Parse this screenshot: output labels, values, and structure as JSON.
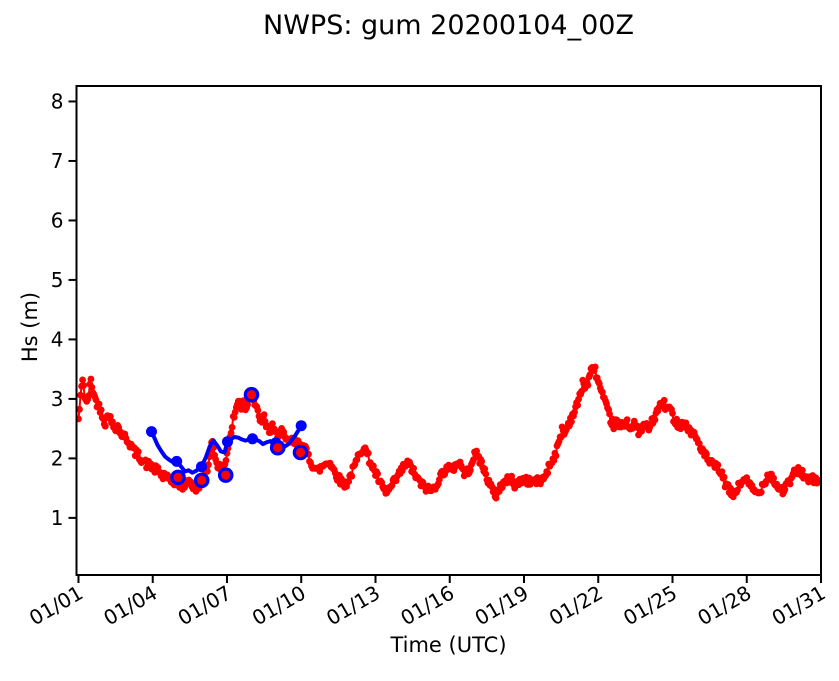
{
  "figure_title": "NWPS: gum 20200104_00Z",
  "colors": {
    "model_red": "#ff0000",
    "forecast_blue": "#0000ff",
    "axis": "#000000",
    "background": "#ffffff"
  },
  "chart_data": {
    "type": "line",
    "title": "NWPS: gum 20200104_00Z",
    "xlabel": "Time (UTC)",
    "ylabel": "Hs (m)",
    "grid": false,
    "legend_position": "none",
    "xlim_days": [
      0.92,
      31.0
    ],
    "ylim": [
      0.04,
      8.26
    ],
    "y_ticks": [
      1,
      2,
      3,
      4,
      5,
      6,
      7,
      8
    ],
    "x_ticks": [
      {
        "day": 1,
        "label": "01/01"
      },
      {
        "day": 4,
        "label": "01/04"
      },
      {
        "day": 7,
        "label": "01/07"
      },
      {
        "day": 10,
        "label": "01/10"
      },
      {
        "day": 13,
        "label": "01/13"
      },
      {
        "day": 16,
        "label": "01/16"
      },
      {
        "day": 19,
        "label": "01/19"
      },
      {
        "day": 22,
        "label": "01/22"
      },
      {
        "day": 25,
        "label": "01/25"
      },
      {
        "day": 28,
        "label": "01/28"
      },
      {
        "day": 31,
        "label": "01/31"
      }
    ],
    "series": [
      {
        "name": "hs-observed-red",
        "style": "line+markers",
        "color": "#ff0000",
        "line_width": 2,
        "marker_radius": 3.4,
        "samples_per_day": 24,
        "noise_amplitude": 0.07,
        "noise_seed": 42,
        "anchors_day_hs": [
          [
            1.0,
            2.65
          ],
          [
            1.08,
            3.0
          ],
          [
            1.17,
            3.38
          ],
          [
            1.25,
            3.05
          ],
          [
            1.33,
            2.9
          ],
          [
            1.42,
            3.1
          ],
          [
            1.5,
            3.3
          ],
          [
            1.58,
            3.15
          ],
          [
            1.67,
            3.0
          ],
          [
            1.79,
            2.9
          ],
          [
            1.92,
            2.8
          ],
          [
            2.0,
            2.7
          ],
          [
            2.08,
            2.58
          ],
          [
            2.21,
            2.78
          ],
          [
            2.33,
            2.6
          ],
          [
            2.46,
            2.52
          ],
          [
            2.58,
            2.55
          ],
          [
            2.71,
            2.42
          ],
          [
            2.83,
            2.38
          ],
          [
            2.96,
            2.32
          ],
          [
            3.08,
            2.25
          ],
          [
            3.25,
            2.12
          ],
          [
            3.42,
            2.05
          ],
          [
            3.58,
            1.98
          ],
          [
            3.75,
            1.9
          ],
          [
            3.92,
            1.88
          ],
          [
            4.08,
            1.82
          ],
          [
            4.25,
            1.78
          ],
          [
            4.42,
            1.68
          ],
          [
            4.5,
            1.76
          ],
          [
            4.63,
            1.63
          ],
          [
            4.79,
            1.6
          ],
          [
            5.0,
            1.62
          ],
          [
            5.17,
            1.52
          ],
          [
            5.33,
            1.57
          ],
          [
            5.46,
            1.65
          ],
          [
            5.58,
            1.55
          ],
          [
            5.75,
            1.47
          ],
          [
            5.88,
            1.55
          ],
          [
            6.0,
            1.63
          ],
          [
            6.13,
            1.72
          ],
          [
            6.25,
            1.88
          ],
          [
            6.38,
            2.35
          ],
          [
            6.46,
            2.15
          ],
          [
            6.58,
            1.95
          ],
          [
            6.71,
            1.83
          ],
          [
            6.83,
            1.76
          ],
          [
            6.92,
            1.9
          ],
          [
            7.0,
            2.1
          ],
          [
            7.13,
            2.35
          ],
          [
            7.25,
            2.65
          ],
          [
            7.38,
            2.85
          ],
          [
            7.5,
            3.0
          ],
          [
            7.58,
            2.85
          ],
          [
            7.67,
            2.95
          ],
          [
            7.79,
            2.82
          ],
          [
            7.88,
            3.05
          ],
          [
            8.0,
            3.1
          ],
          [
            8.08,
            2.98
          ],
          [
            8.17,
            2.85
          ],
          [
            8.29,
            2.72
          ],
          [
            8.42,
            2.6
          ],
          [
            8.5,
            2.68
          ],
          [
            8.63,
            2.52
          ],
          [
            8.75,
            2.45
          ],
          [
            8.83,
            2.52
          ],
          [
            8.96,
            2.4
          ],
          [
            9.08,
            2.42
          ],
          [
            9.21,
            2.48
          ],
          [
            9.33,
            2.32
          ],
          [
            9.46,
            2.27
          ],
          [
            9.58,
            2.3
          ],
          [
            9.71,
            2.27
          ],
          [
            9.83,
            2.24
          ],
          [
            9.96,
            2.26
          ],
          [
            10.08,
            2.2
          ],
          [
            10.25,
            2.08
          ],
          [
            10.42,
            1.92
          ],
          [
            10.54,
            1.84
          ],
          [
            10.67,
            1.79
          ],
          [
            10.83,
            1.86
          ],
          [
            11.0,
            1.92
          ],
          [
            11.13,
            1.95
          ],
          [
            11.29,
            1.82
          ],
          [
            11.46,
            1.7
          ],
          [
            11.63,
            1.6
          ],
          [
            11.79,
            1.56
          ],
          [
            11.96,
            1.68
          ],
          [
            12.17,
            1.88
          ],
          [
            12.38,
            2.12
          ],
          [
            12.54,
            2.2
          ],
          [
            12.71,
            2.02
          ],
          [
            12.88,
            1.86
          ],
          [
            13.08,
            1.68
          ],
          [
            13.29,
            1.5
          ],
          [
            13.46,
            1.42
          ],
          [
            13.63,
            1.52
          ],
          [
            13.83,
            1.65
          ],
          [
            14.0,
            1.76
          ],
          [
            14.17,
            1.88
          ],
          [
            14.33,
            1.92
          ],
          [
            14.5,
            1.8
          ],
          [
            14.71,
            1.64
          ],
          [
            14.92,
            1.54
          ],
          [
            15.13,
            1.48
          ],
          [
            15.29,
            1.46
          ],
          [
            15.5,
            1.6
          ],
          [
            15.71,
            1.76
          ],
          [
            15.92,
            1.85
          ],
          [
            16.08,
            1.8
          ],
          [
            16.25,
            1.9
          ],
          [
            16.38,
            1.94
          ],
          [
            16.5,
            1.84
          ],
          [
            16.63,
            1.72
          ],
          [
            16.79,
            1.82
          ],
          [
            16.96,
            2.02
          ],
          [
            17.08,
            2.08
          ],
          [
            17.25,
            1.95
          ],
          [
            17.42,
            1.78
          ],
          [
            17.58,
            1.6
          ],
          [
            17.75,
            1.44
          ],
          [
            17.88,
            1.38
          ],
          [
            18.04,
            1.52
          ],
          [
            18.25,
            1.62
          ],
          [
            18.46,
            1.66
          ],
          [
            18.63,
            1.56
          ],
          [
            18.83,
            1.6
          ],
          [
            19.0,
            1.66
          ],
          [
            19.21,
            1.6
          ],
          [
            19.42,
            1.63
          ],
          [
            19.63,
            1.6
          ],
          [
            19.79,
            1.66
          ],
          [
            19.96,
            1.82
          ],
          [
            20.13,
            1.96
          ],
          [
            20.29,
            2.1
          ],
          [
            20.46,
            2.32
          ],
          [
            20.54,
            2.52
          ],
          [
            20.63,
            2.4
          ],
          [
            20.79,
            2.58
          ],
          [
            20.96,
            2.72
          ],
          [
            21.13,
            2.88
          ],
          [
            21.29,
            3.08
          ],
          [
            21.38,
            3.32
          ],
          [
            21.46,
            3.18
          ],
          [
            21.58,
            3.28
          ],
          [
            21.71,
            3.45
          ],
          [
            21.83,
            3.55
          ],
          [
            21.96,
            3.35
          ],
          [
            22.08,
            3.18
          ],
          [
            22.25,
            2.95
          ],
          [
            22.38,
            2.8
          ],
          [
            22.5,
            2.65
          ],
          [
            22.63,
            2.56
          ],
          [
            22.75,
            2.62
          ],
          [
            22.88,
            2.52
          ],
          [
            23.0,
            2.56
          ],
          [
            23.17,
            2.62
          ],
          [
            23.33,
            2.5
          ],
          [
            23.46,
            2.56
          ],
          [
            23.63,
            2.46
          ],
          [
            23.79,
            2.5
          ],
          [
            23.92,
            2.56
          ],
          [
            24.04,
            2.5
          ],
          [
            24.17,
            2.6
          ],
          [
            24.33,
            2.74
          ],
          [
            24.5,
            2.88
          ],
          [
            24.63,
            2.95
          ],
          [
            24.75,
            2.82
          ],
          [
            24.88,
            2.86
          ],
          [
            25.0,
            2.72
          ],
          [
            25.17,
            2.6
          ],
          [
            25.33,
            2.56
          ],
          [
            25.46,
            2.6
          ],
          [
            25.63,
            2.5
          ],
          [
            25.79,
            2.44
          ],
          [
            25.96,
            2.34
          ],
          [
            26.08,
            2.24
          ],
          [
            26.25,
            2.1
          ],
          [
            26.42,
            1.98
          ],
          [
            26.58,
            1.9
          ],
          [
            26.75,
            1.86
          ],
          [
            26.92,
            1.8
          ],
          [
            27.08,
            1.62
          ],
          [
            27.29,
            1.46
          ],
          [
            27.46,
            1.38
          ],
          [
            27.63,
            1.5
          ],
          [
            27.79,
            1.6
          ],
          [
            27.92,
            1.68
          ],
          [
            28.08,
            1.56
          ],
          [
            28.29,
            1.46
          ],
          [
            28.46,
            1.4
          ],
          [
            28.63,
            1.54
          ],
          [
            28.83,
            1.7
          ],
          [
            28.96,
            1.74
          ],
          [
            29.13,
            1.6
          ],
          [
            29.29,
            1.5
          ],
          [
            29.46,
            1.46
          ],
          [
            29.63,
            1.54
          ],
          [
            29.79,
            1.64
          ],
          [
            29.96,
            1.78
          ],
          [
            30.17,
            1.8
          ],
          [
            30.33,
            1.7
          ],
          [
            30.5,
            1.6
          ],
          [
            30.67,
            1.66
          ],
          [
            30.83,
            1.6
          ],
          [
            31.0,
            1.62
          ]
        ]
      },
      {
        "name": "hs-forecast-blue",
        "style": "line+markers",
        "color": "#0000ff",
        "line_width": 4,
        "marker_radius": 5.5,
        "line_day_hs": [
          [
            3.92,
            2.46
          ],
          [
            4.05,
            2.36
          ],
          [
            4.2,
            2.22
          ],
          [
            4.35,
            2.12
          ],
          [
            4.5,
            2.03
          ],
          [
            4.65,
            1.98
          ],
          [
            4.8,
            1.94
          ],
          [
            4.97,
            1.95
          ],
          [
            5.15,
            1.86
          ],
          [
            5.3,
            1.78
          ],
          [
            5.45,
            1.8
          ],
          [
            5.6,
            1.76
          ],
          [
            5.75,
            1.79
          ],
          [
            5.97,
            1.86
          ],
          [
            6.15,
            2.02
          ],
          [
            6.3,
            2.2
          ],
          [
            6.45,
            2.3
          ],
          [
            6.6,
            2.22
          ],
          [
            6.75,
            2.12
          ],
          [
            6.9,
            2.1
          ],
          [
            7.02,
            2.28
          ],
          [
            7.15,
            2.32
          ],
          [
            7.3,
            2.36
          ],
          [
            7.45,
            2.35
          ],
          [
            7.6,
            2.32
          ],
          [
            7.75,
            2.3
          ],
          [
            7.9,
            2.32
          ],
          [
            8.03,
            2.33
          ],
          [
            8.15,
            2.32
          ],
          [
            8.3,
            2.29
          ],
          [
            8.45,
            2.24
          ],
          [
            8.6,
            2.27
          ],
          [
            8.75,
            2.29
          ],
          [
            8.97,
            2.26
          ],
          [
            9.15,
            2.21
          ],
          [
            9.3,
            2.19
          ],
          [
            9.45,
            2.23
          ],
          [
            9.6,
            2.3
          ],
          [
            9.75,
            2.38
          ],
          [
            9.9,
            2.48
          ],
          [
            10.04,
            2.56
          ]
        ],
        "markers_day_hs": [
          [
            3.95,
            2.45
          ],
          [
            4.97,
            1.95
          ],
          [
            5.97,
            1.86
          ],
          [
            7.02,
            2.28
          ],
          [
            8.03,
            2.33
          ],
          [
            8.97,
            2.26
          ],
          [
            10.0,
            2.55
          ]
        ]
      },
      {
        "name": "hs-verification-rings",
        "style": "open-circles",
        "edge_color": "#0000ff",
        "face_color": "#ff0000",
        "marker_radius": 6.2,
        "edge_width": 3.2,
        "points_day_hs": [
          [
            5.02,
            1.68
          ],
          [
            5.98,
            1.63
          ],
          [
            6.95,
            1.72
          ],
          [
            7.99,
            3.07
          ],
          [
            9.05,
            2.18
          ],
          [
            9.97,
            2.1
          ]
        ]
      }
    ]
  }
}
